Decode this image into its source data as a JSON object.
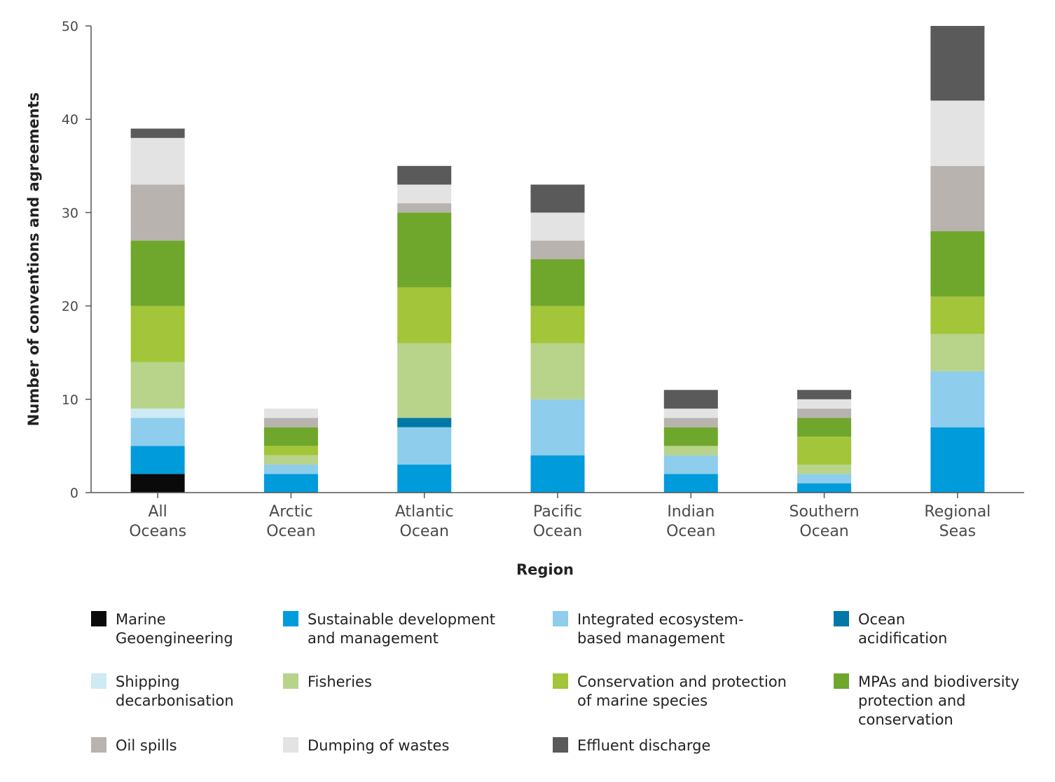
{
  "chart_data": {
    "type": "bar",
    "stacked": true,
    "title": "",
    "xlabel": "Region",
    "ylabel": "Number of conventions and agreements",
    "ylim": [
      0,
      50
    ],
    "yticks": [
      0,
      10,
      20,
      30,
      40,
      50
    ],
    "grid": false,
    "legend_position": "bottom",
    "categories": [
      [
        "All",
        "Oceans"
      ],
      [
        "Arctic",
        "Ocean"
      ],
      [
        "Atlantic",
        "Ocean"
      ],
      [
        "Pacific",
        "Ocean"
      ],
      [
        "Indian",
        "Ocean"
      ],
      [
        "Southern",
        "Ocean"
      ],
      [
        "Regional",
        "Seas"
      ]
    ],
    "series": [
      {
        "name": [
          "Marine",
          "Geoengineering"
        ],
        "color": "#0a0a0a",
        "values": [
          2,
          0,
          0,
          0,
          0,
          0,
          0
        ]
      },
      {
        "name": [
          "Sustainable development",
          "and management"
        ],
        "color": "#009bdb",
        "values": [
          3,
          2,
          3,
          4,
          2,
          1,
          7
        ]
      },
      {
        "name": [
          "Integrated ecosystem-",
          "based management"
        ],
        "color": "#8ecdeb",
        "values": [
          3,
          1,
          4,
          6,
          2,
          1,
          6
        ]
      },
      {
        "name": [
          "Ocean",
          "acidification"
        ],
        "color": "#0078a8",
        "values": [
          0,
          0,
          1,
          0,
          0,
          0,
          0
        ]
      },
      {
        "name": [
          "Shipping",
          "decarbonisation"
        ],
        "color": "#cdeaf5",
        "values": [
          1,
          0,
          0,
          0,
          0,
          0,
          0
        ]
      },
      {
        "name": [
          "Fisheries"
        ],
        "color": "#b7d48a",
        "values": [
          5,
          1,
          8,
          6,
          1,
          1,
          4
        ]
      },
      {
        "name": [
          "Conservation and protection",
          "of marine species"
        ],
        "color": "#a2c539",
        "values": [
          6,
          1,
          6,
          4,
          0,
          3,
          4
        ]
      },
      {
        "name": [
          "MPAs and biodiversity",
          "protection and",
          "conservation"
        ],
        "color": "#6fa72c",
        "values": [
          7,
          2,
          8,
          5,
          2,
          2,
          7
        ]
      },
      {
        "name": [
          "Oil spills"
        ],
        "color": "#b8b3ae",
        "values": [
          6,
          1,
          1,
          2,
          1,
          1,
          7
        ]
      },
      {
        "name": [
          "Dumping of wastes"
        ],
        "color": "#e3e3e3",
        "values": [
          5,
          1,
          2,
          3,
          1,
          1,
          7
        ]
      },
      {
        "name": [
          "Effluent discharge"
        ],
        "color": "#5a5a5a",
        "values": [
          1,
          0,
          2,
          3,
          2,
          1,
          8
        ]
      }
    ]
  }
}
